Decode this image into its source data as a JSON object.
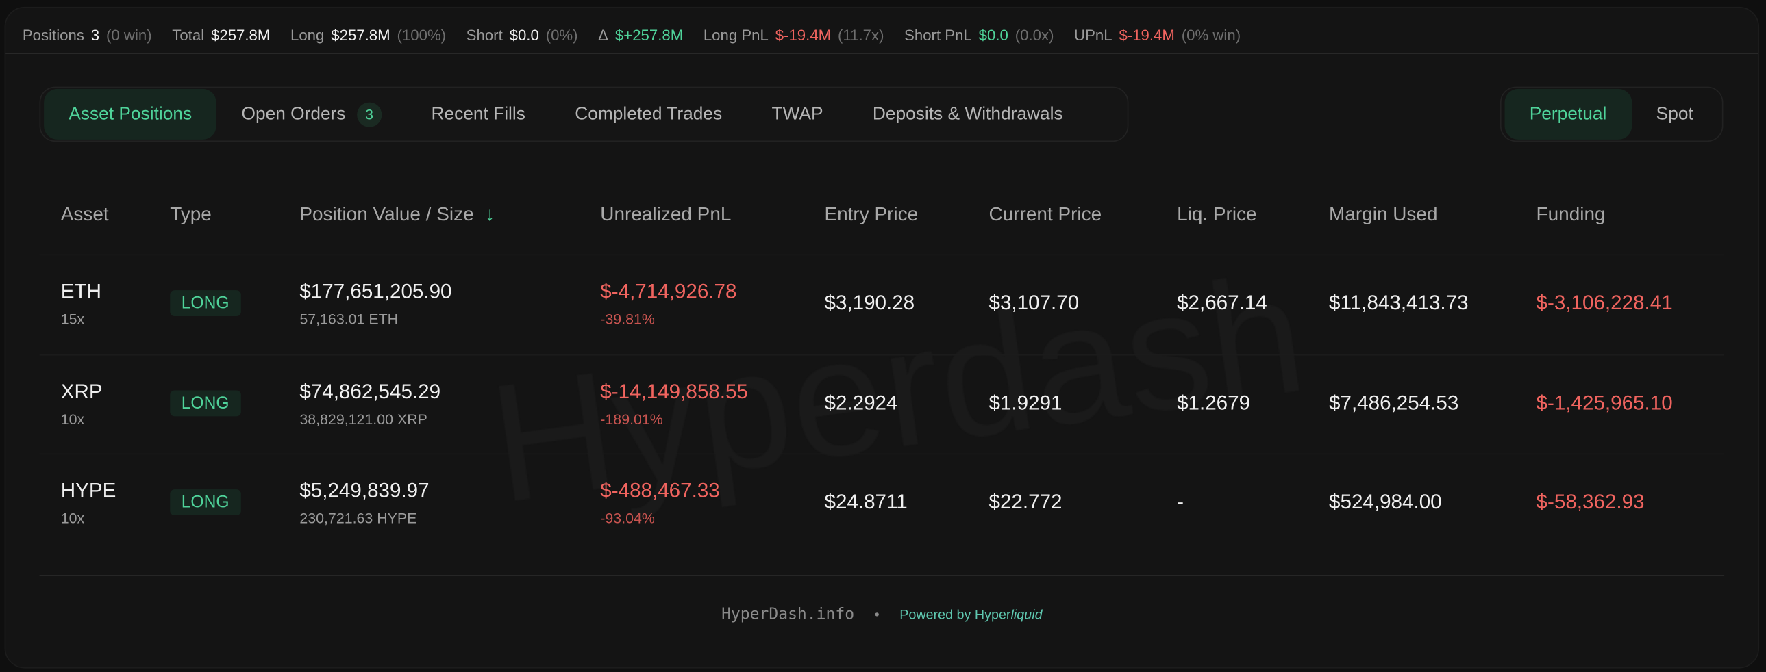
{
  "summary": {
    "positions": {
      "label": "Positions",
      "value": "3",
      "note": "(0 win)"
    },
    "total": {
      "label": "Total",
      "value": "$257.8M"
    },
    "long": {
      "label": "Long",
      "value": "$257.8M",
      "note": "(100%)"
    },
    "short": {
      "label": "Short",
      "value": "$0.0",
      "note": "(0%)"
    },
    "delta": {
      "label": "Δ",
      "value": "$+257.8M"
    },
    "long_pnl": {
      "label": "Long PnL",
      "value": "$-19.4M",
      "note": "(11.7x)"
    },
    "short_pnl": {
      "label": "Short PnL",
      "value": "$0.0",
      "note": "(0.0x)"
    },
    "upnl": {
      "label": "UPnL",
      "value": "$-19.4M",
      "note": "(0% win)"
    }
  },
  "tabs": [
    {
      "label": "Asset Positions",
      "active": true
    },
    {
      "label": "Open Orders",
      "badge": "3"
    },
    {
      "label": "Recent Fills"
    },
    {
      "label": "Completed Trades"
    },
    {
      "label": "TWAP"
    },
    {
      "label": "Deposits & Withdrawals"
    }
  ],
  "market_toggle": [
    {
      "label": "Perpetual",
      "active": true
    },
    {
      "label": "Spot"
    }
  ],
  "watermark": "Hyperdash",
  "table": {
    "headers": [
      "Asset",
      "Type",
      "Position Value / Size",
      "Unrealized PnL",
      "Entry Price",
      "Current Price",
      "Liq. Price",
      "Margin Used",
      "Funding"
    ],
    "sort_icon": "arrow-down-icon",
    "rows": [
      {
        "asset": "ETH",
        "leverage": "15x",
        "type": "LONG",
        "value": "$177,651,205.90",
        "size": "57,163.01 ETH",
        "upnl": "$-4,714,926.78",
        "upnl_pct": "-39.81%",
        "entry": "$3,190.28",
        "current": "$3,107.70",
        "liq": "$2,667.14",
        "margin": "$11,843,413.73",
        "funding": "$-3,106,228.41"
      },
      {
        "asset": "XRP",
        "leverage": "10x",
        "type": "LONG",
        "value": "$74,862,545.29",
        "size": "38,829,121.00 XRP",
        "upnl": "$-14,149,858.55",
        "upnl_pct": "-189.01%",
        "entry": "$2.2924",
        "current": "$1.9291",
        "liq": "$1.2679",
        "margin": "$7,486,254.53",
        "funding": "$-1,425,965.10"
      },
      {
        "asset": "HYPE",
        "leverage": "10x",
        "type": "LONG",
        "value": "$5,249,839.97",
        "size": "230,721.63 HYPE",
        "upnl": "$-488,467.33",
        "upnl_pct": "-93.04%",
        "entry": "$24.8711",
        "current": "$22.772",
        "liq": "-",
        "margin": "$524,984.00",
        "funding": "$-58,362.93"
      }
    ]
  },
  "footer": {
    "site": "HyperDash.info",
    "separator": "•",
    "powered_prefix": "Powered by Hyper",
    "powered_italic": "liquid"
  },
  "colors": {
    "accent": "#4fd39a",
    "negative": "#f0645f",
    "background": "#141414"
  }
}
